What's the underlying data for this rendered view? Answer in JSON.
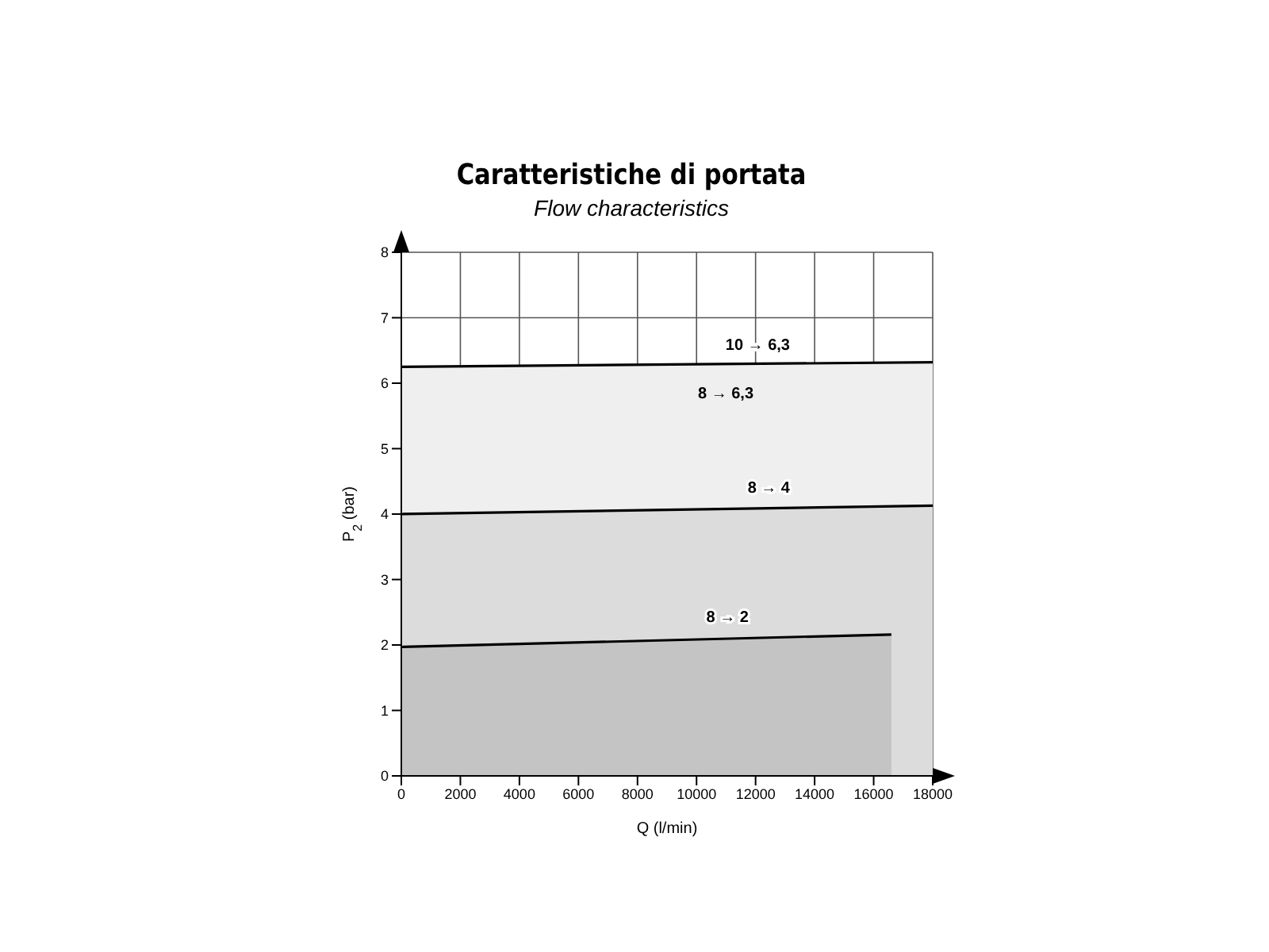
{
  "chart_data": {
    "type": "area",
    "title": "Caratteristiche di portata",
    "subtitle": "Flow characteristics",
    "xlabel": "Q (l/min)",
    "ylabel": "P$_{2}$ (bar)",
    "series": [
      {
        "name": "10 → 6,3",
        "color": "#efefef",
        "x": [
          0,
          18000
        ],
        "values": [
          6.25,
          6.32
        ]
      },
      {
        "name": "8 → 4",
        "color": "#dcdcdc",
        "x": [
          0,
          18000
        ],
        "values": [
          4.0,
          4.13
        ]
      },
      {
        "name": "8 → 2",
        "color": "#c4c4c4",
        "x": [
          0,
          16600
        ],
        "values": [
          1.97,
          2.16
        ]
      }
    ],
    "annotations": [
      "8 → 6,3"
    ],
    "xlim": [
      0,
      18000
    ],
    "xticks": [
      0,
      2000,
      4000,
      6000,
      8000,
      10000,
      12000,
      14000,
      16000,
      18000
    ],
    "ylim": [
      0,
      8
    ],
    "yticks": [
      0,
      1,
      2,
      3,
      4,
      5,
      6,
      7,
      8
    ],
    "grid": true,
    "legend": false
  }
}
